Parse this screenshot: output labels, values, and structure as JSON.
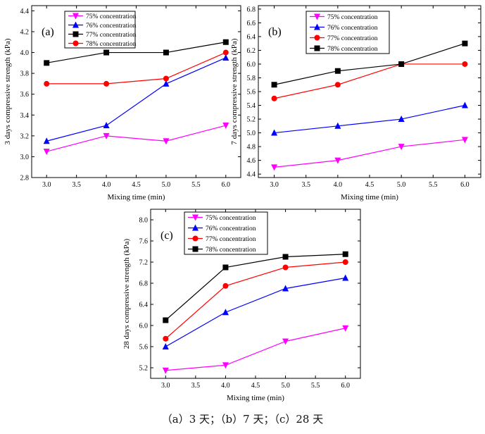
{
  "caption": "（a）3 天；（b）7 天；（c）28 天",
  "colors": {
    "magenta": "#ff00ff",
    "blue": "#0000ff",
    "black": "#000000",
    "red": "#ff0000"
  },
  "chart_data": [
    {
      "type": "line",
      "panel_label": "(a)",
      "xlabel": "Mixing time (min)",
      "ylabel": "3 days compressive strength (kPa)",
      "xlim": [
        2.75,
        6.25
      ],
      "ylim": [
        2.8,
        4.45
      ],
      "xticks": [
        3.0,
        3.5,
        4.0,
        4.5,
        5.0,
        5.5,
        6.0
      ],
      "xtick_labels": [
        "3.0",
        "3.5",
        "4.0",
        "4.5",
        "5.0",
        "5.5",
        "6.0"
      ],
      "yticks": [
        2.8,
        3.0,
        3.2,
        3.4,
        3.6,
        3.8,
        4.0,
        4.2,
        4.4
      ],
      "ytick_labels": [
        "2.8",
        "3.0",
        "3.2",
        "3.4",
        "3.6",
        "3.8",
        "4.0",
        "4.2",
        "4.4"
      ],
      "grid": false,
      "legend": "top-left",
      "x": [
        3.0,
        4.0,
        5.0,
        6.0
      ],
      "series": [
        {
          "name": "75% concentration",
          "color": "#ff00ff",
          "marker": "triangle-down",
          "values": [
            3.05,
            3.2,
            3.15,
            3.3
          ]
        },
        {
          "name": "76% concentration",
          "color": "#0000ff",
          "marker": "triangle-up",
          "values": [
            3.15,
            3.3,
            3.7,
            3.95
          ]
        },
        {
          "name": "77% concentration",
          "color": "#000000",
          "marker": "square",
          "values": [
            3.9,
            4.0,
            4.0,
            4.1
          ]
        },
        {
          "name": "78% concentration",
          "color": "#ff0000",
          "marker": "circle",
          "values": [
            3.7,
            3.7,
            3.75,
            4.0
          ]
        }
      ]
    },
    {
      "type": "line",
      "panel_label": "(b)",
      "xlabel": "Mixing time (min)",
      "ylabel": "7 days compressive strength (kPa)",
      "xlim": [
        2.75,
        6.25
      ],
      "ylim": [
        4.35,
        6.85
      ],
      "xticks": [
        3.0,
        3.5,
        4.0,
        4.5,
        5.0,
        5.5,
        6.0
      ],
      "xtick_labels": [
        "3.0",
        "3.5",
        "4.0",
        "4.5",
        "5.0",
        "5.5",
        "6.0"
      ],
      "yticks": [
        4.4,
        4.6,
        4.8,
        5.0,
        5.2,
        5.4,
        5.6,
        5.8,
        6.0,
        6.2,
        6.4,
        6.6,
        6.8
      ],
      "ytick_labels": [
        "4.4",
        "4.6",
        "4.8",
        "5.0",
        "5.2",
        "5.4",
        "5.6",
        "5.8",
        "6.0",
        "6.2",
        "6.4",
        "6.6",
        "6.8"
      ],
      "grid": false,
      "legend": "top-left",
      "x": [
        3.0,
        4.0,
        5.0,
        6.0
      ],
      "series": [
        {
          "name": "75% concentration",
          "color": "#ff00ff",
          "marker": "triangle-down",
          "values": [
            4.5,
            4.6,
            4.8,
            4.9
          ]
        },
        {
          "name": "76% concentration",
          "color": "#0000ff",
          "marker": "triangle-up",
          "values": [
            5.0,
            5.1,
            5.2,
            5.4
          ]
        },
        {
          "name": "77% concentration",
          "color": "#ff0000",
          "marker": "circle",
          "values": [
            5.5,
            5.7,
            6.0,
            6.0
          ]
        },
        {
          "name": "78% concentration",
          "color": "#000000",
          "marker": "square",
          "values": [
            5.7,
            5.9,
            6.0,
            6.3
          ]
        }
      ]
    },
    {
      "type": "line",
      "panel_label": "(c)",
      "xlabel": "Mixing time (min)",
      "ylabel": "28 days compressive strength (kPa)",
      "xlim": [
        2.75,
        6.25
      ],
      "ylim": [
        5.0,
        8.2
      ],
      "xticks": [
        3.0,
        3.5,
        4.0,
        4.5,
        5.0,
        5.5,
        6.0
      ],
      "xtick_labels": [
        "3.0",
        "3.5",
        "4.0",
        "4.5",
        "5.0",
        "5.5",
        "6.0"
      ],
      "yticks": [
        5.2,
        5.6,
        6.0,
        6.4,
        6.8,
        7.2,
        7.6,
        8.0
      ],
      "ytick_labels": [
        "5.2",
        "5.6",
        "6.0",
        "6.4",
        "6.8",
        "7.2",
        "7.6",
        "8.0"
      ],
      "grid": false,
      "legend": "top-left",
      "x": [
        3.0,
        4.0,
        5.0,
        6.0
      ],
      "series": [
        {
          "name": "75% concentration",
          "color": "#ff00ff",
          "marker": "triangle-down",
          "values": [
            5.15,
            5.25,
            5.7,
            5.95
          ]
        },
        {
          "name": "76% concentration",
          "color": "#0000ff",
          "marker": "triangle-up",
          "values": [
            5.6,
            6.25,
            6.7,
            6.9
          ]
        },
        {
          "name": "77% concentration",
          "color": "#ff0000",
          "marker": "circle",
          "values": [
            5.75,
            6.75,
            7.1,
            7.2
          ]
        },
        {
          "name": "78% concentration",
          "color": "#000000",
          "marker": "square",
          "values": [
            6.1,
            7.1,
            7.3,
            7.35
          ]
        }
      ]
    }
  ]
}
